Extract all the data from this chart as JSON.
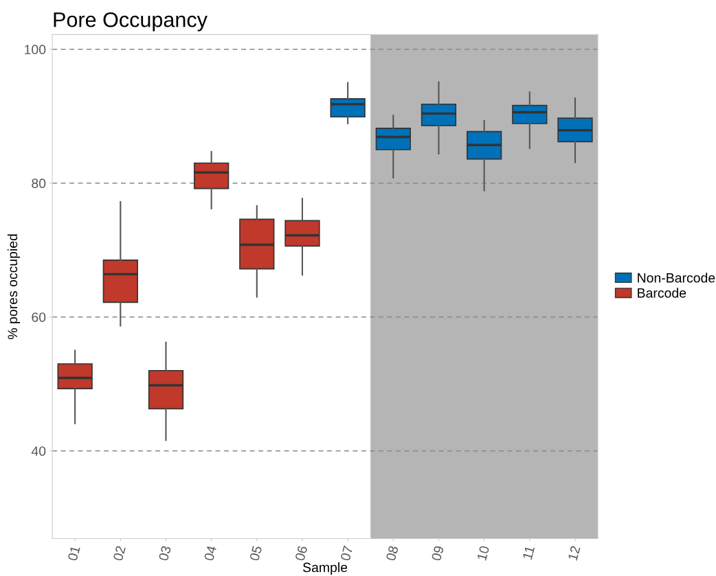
{
  "chart_data": {
    "type": "box",
    "title": "Pore Occupancy",
    "xlabel": "Sample",
    "ylabel": "% pores occupied",
    "categories": [
      "01",
      "02",
      "03",
      "04",
      "05",
      "06",
      "07",
      "08",
      "09",
      "10",
      "11",
      "12"
    ],
    "series": [
      {
        "name": "Non-Barcode",
        "color": "#0071b9",
        "boxes": [
          null,
          null,
          null,
          null,
          null,
          null,
          {
            "low": 88.9,
            "q1": 89.9,
            "median": 91.8,
            "q3": 92.6,
            "high": 95.0
          },
          {
            "low": 80.8,
            "q1": 85.0,
            "median": 86.9,
            "q3": 88.2,
            "high": 90.1
          },
          {
            "low": 84.4,
            "q1": 88.6,
            "median": 90.4,
            "q3": 91.8,
            "high": 95.1
          },
          {
            "low": 78.9,
            "q1": 83.6,
            "median": 85.7,
            "q3": 87.7,
            "high": 89.3
          },
          {
            "low": 85.2,
            "q1": 88.9,
            "median": 90.6,
            "q3": 91.6,
            "high": 93.6
          },
          {
            "low": 83.1,
            "q1": 86.2,
            "median": 87.9,
            "q3": 89.7,
            "high": 92.7
          }
        ]
      },
      {
        "name": "Barcode",
        "color": "#c0392b",
        "boxes": [
          {
            "low": 44.1,
            "q1": 49.3,
            "median": 50.9,
            "q3": 53.0,
            "high": 55.0
          },
          {
            "low": 58.7,
            "q1": 62.2,
            "median": 66.4,
            "q3": 68.5,
            "high": 77.2
          },
          {
            "low": 41.6,
            "q1": 46.3,
            "median": 49.8,
            "q3": 52.0,
            "high": 56.2
          },
          {
            "low": 76.2,
            "q1": 79.2,
            "median": 81.6,
            "q3": 83.0,
            "high": 84.7
          },
          {
            "low": 63.0,
            "q1": 67.2,
            "median": 70.8,
            "q3": 74.6,
            "high": 76.6
          },
          {
            "low": 66.3,
            "q1": 70.6,
            "median": 72.2,
            "q3": 74.4,
            "high": 77.7
          },
          null,
          null,
          null,
          null,
          null,
          null
        ]
      }
    ],
    "bands": [
      {
        "axis": "x",
        "from": "08",
        "to": "12",
        "color": "#b5b5b5"
      }
    ],
    "ylim": [
      26.9,
      102.2
    ],
    "yticks": [
      40,
      60,
      80,
      100
    ],
    "grid": "y",
    "legend": "right"
  }
}
